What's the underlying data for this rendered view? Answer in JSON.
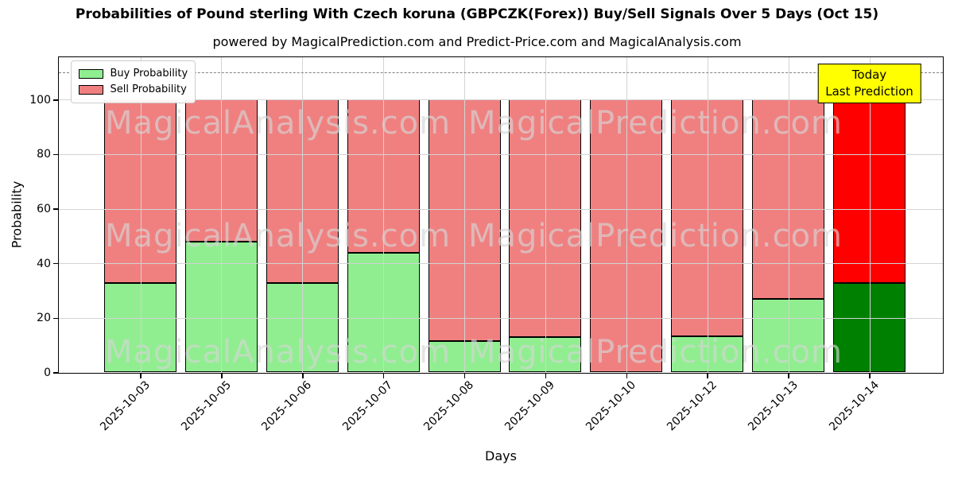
{
  "title": "Probabilities of Pound sterling With Czech koruna (GBPCZK(Forex)) Buy/Sell Signals Over 5 Days (Oct 15)",
  "subtitle": "powered by MagicalPrediction.com and Predict-Price.com and MagicalAnalysis.com",
  "chart_data": {
    "type": "bar",
    "stacked": true,
    "title": "Probabilities of Pound sterling With Czech koruna (GBPCZK(Forex)) Buy/Sell Signals Over 5 Days (Oct 15)",
    "subtitle": "powered by MagicalPrediction.com and Predict-Price.com and MagicalAnalysis.com",
    "xlabel": "Days",
    "ylabel": "Probability",
    "categories": [
      "2025-10-03",
      "2025-10-05",
      "2025-10-06",
      "2025-10-07",
      "2025-10-08",
      "2025-10-09",
      "2025-10-10",
      "2025-10-12",
      "2025-10-13",
      "2025-10-14"
    ],
    "series": [
      {
        "name": "Buy Probability",
        "color": "#90ee90",
        "today_color": "#008000",
        "values": [
          32.7,
          47.9,
          32.7,
          43.9,
          11.4,
          13.1,
          0.0,
          13.3,
          26.9,
          32.7
        ]
      },
      {
        "name": "Sell Probability",
        "color": "#f08080",
        "today_color": "#ff0000",
        "values": [
          67.3,
          52.1,
          67.3,
          56.1,
          88.6,
          86.9,
          100.0,
          86.7,
          73.1,
          67.3
        ]
      }
    ],
    "yticks": [
      0,
      20,
      40,
      60,
      80,
      100
    ],
    "ylim": [
      0,
      115.7
    ],
    "grid": true,
    "legend_position": "upper left",
    "dashed_line_y": 110,
    "today_annotation": {
      "lines": [
        "Today",
        "Last Prediction"
      ],
      "bg_color": "#ffff00",
      "applies_to": "2025-10-14"
    },
    "watermarks": [
      "MagicalAnalysis.com",
      "MagicalPrediction.com"
    ],
    "colors": {
      "bar_edge": "#000000",
      "grid": "#d3d3d3",
      "dashed_line": "#808080",
      "watermark": "rgba(213,213,213,0.65)"
    }
  }
}
